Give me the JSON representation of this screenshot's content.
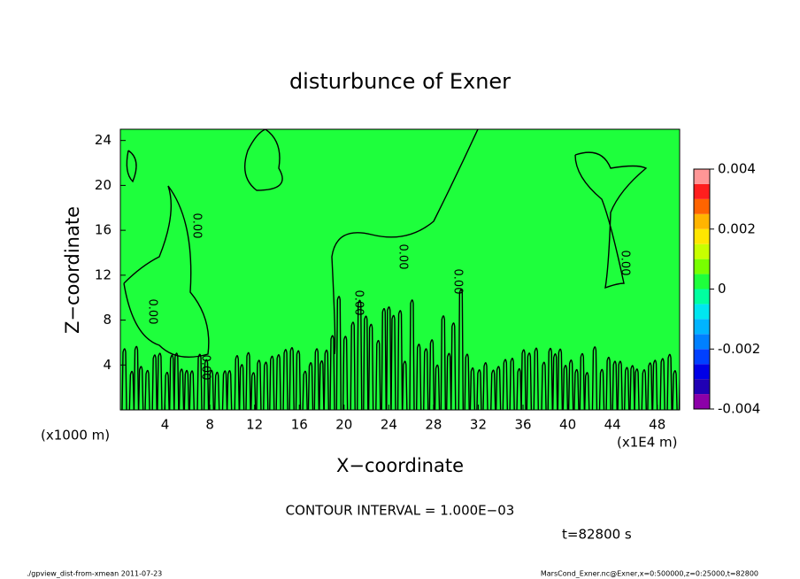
{
  "chart_data": {
    "type": "contour",
    "title": "disturbunce of Exner",
    "x_label": "X−coordinate",
    "y_label": "Z−coordinate",
    "x_unit": "(x1E4 m)",
    "y_unit": "(x1000 m)",
    "xlim": [
      0,
      50
    ],
    "xticks": [
      4,
      8,
      12,
      16,
      20,
      24,
      28,
      32,
      36,
      40,
      44,
      48
    ],
    "ylim": [
      0,
      25
    ],
    "yticks": [
      4,
      8,
      12,
      16,
      20,
      24
    ],
    "field_color": "#1eff3c",
    "contour_label": "0.00",
    "colorbar": {
      "levels": [
        -0.004,
        -0.0035,
        -0.003,
        -0.0025,
        -0.002,
        -0.0015,
        -0.001,
        -0.0005,
        0,
        0.0005,
        0.001,
        0.0015,
        0.002,
        0.0025,
        0.003,
        0.0035,
        0.004
      ],
      "colors": [
        "#8c00a8",
        "#2000b4",
        "#0000e6",
        "#0040ff",
        "#0080ff",
        "#00b4ff",
        "#00e6f0",
        "#00ffa0",
        "#1eff3c",
        "#78ff00",
        "#c8ff00",
        "#ffe600",
        "#ffb400",
        "#ff6400",
        "#ff1e1e",
        "#ff9696"
      ],
      "ticks": [
        -0.004,
        -0.002,
        0,
        0.002,
        0.004
      ]
    },
    "contour_interval": "CONTOUR INTERVAL = 1.000E−03",
    "time_label": "t=82800 s",
    "footer_left": "./gpview_dist-from-xmean  2011-07-23",
    "footer_right": "MarsCond_Exner.nc@Exner,x=0:500000,z=0:25000,t=82800"
  }
}
